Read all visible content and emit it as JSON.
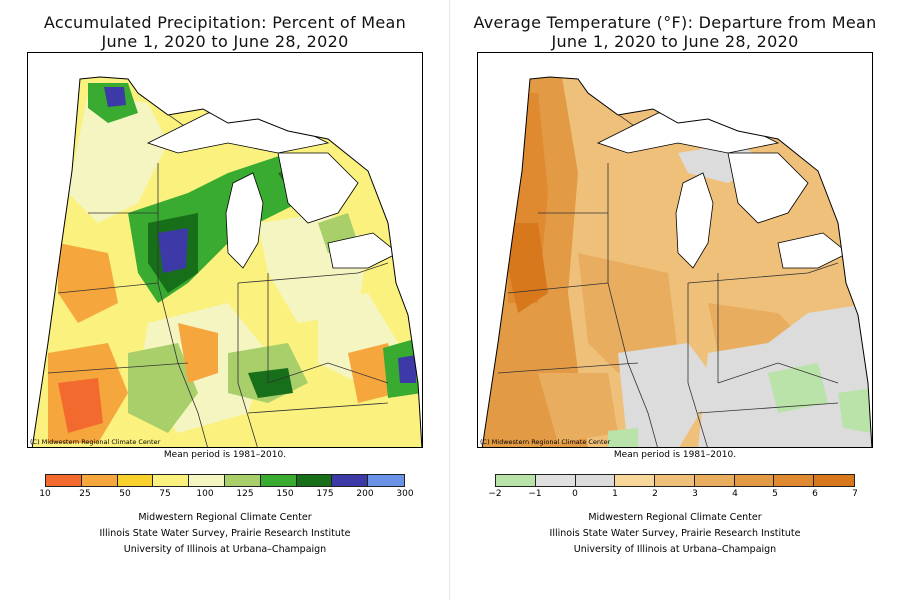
{
  "panels": {
    "precip": {
      "title_line1": "Accumulated Precipitation: Percent of Mean",
      "title_line2": "June 1, 2020 to June 28, 2020",
      "credit": "(C) Midwestern Regional Climate Center",
      "mean_period": "Mean period is 1981–2010.",
      "legend": {
        "ticks": [
          "10",
          "25",
          "50",
          "75",
          "100",
          "125",
          "150",
          "175",
          "200",
          "300"
        ],
        "colors": [
          "#f26a2e",
          "#f5a63c",
          "#f8d12c",
          "#faf17e",
          "#f5f5c2",
          "#a9cf6a",
          "#3aab31",
          "#176f1a",
          "#3d3aa8",
          "#6a92e6"
        ]
      }
    },
    "temp": {
      "title_line1": "Average Temperature (°F): Departure from Mean",
      "title_line2": "June 1, 2020 to June 28, 2020",
      "credit": "(C) Midwestern Regional Climate Center",
      "mean_period": "Mean period is 1981–2010.",
      "legend": {
        "ticks": [
          "−2",
          "−1",
          "0",
          "1",
          "2",
          "3",
          "4",
          "5",
          "6",
          "7"
        ],
        "colors": [
          "#b9e3a8",
          "#e0e0e0",
          "#dcdcdc",
          "#f7d79a",
          "#efc07a",
          "#e9ad5f",
          "#e39a45",
          "#df8a30",
          "#d8781d"
        ]
      }
    }
  },
  "footer": {
    "line1": "Midwestern Regional Climate Center",
    "line2": "Illinois State Water Survey, Prairie Research Institute",
    "line3": "University of Illinois at Urbana–Champaign"
  }
}
